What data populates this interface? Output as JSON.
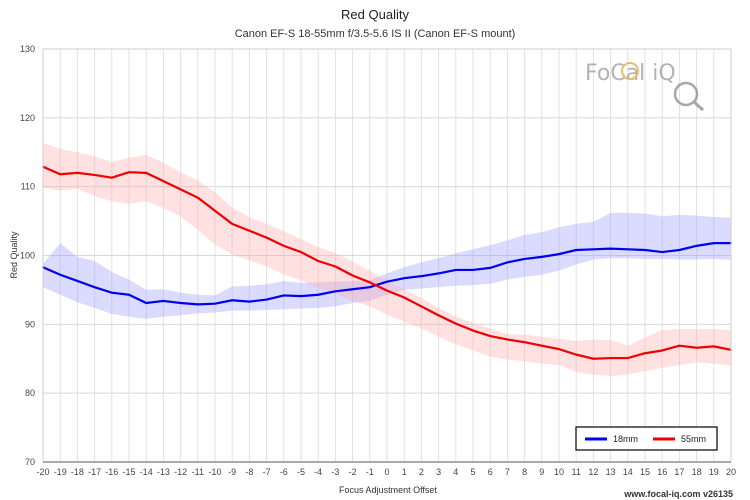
{
  "chart_data": {
    "type": "line",
    "title": "Red Quality",
    "subtitle": "Canon EF-S 18-55mm f/3.5-5.6 IS II (Canon EF-S mount)",
    "xlabel": "Focus Adjustment Offset",
    "ylabel": "Red Quality",
    "x": [
      -20,
      -19,
      -18,
      -17,
      -16,
      -15,
      -14,
      -13,
      -12,
      -11,
      -10,
      -9,
      -8,
      -7,
      -6,
      -5,
      -4,
      -3,
      -2,
      -1,
      0,
      1,
      2,
      3,
      4,
      5,
      6,
      7,
      8,
      9,
      10,
      11,
      12,
      13,
      14,
      15,
      16,
      17,
      18,
      19,
      20
    ],
    "x_tick_labels": [
      "-20",
      "-19",
      "-18",
      "-17",
      "-16",
      "-15",
      "-14",
      "-13",
      "-12",
      "-11",
      "-10",
      "-9",
      "-8",
      "-7",
      "-6",
      "-5",
      "-4",
      "-3",
      "-2",
      "-1",
      "0",
      "1",
      "2",
      "3",
      "4",
      "5",
      "6",
      "7",
      "8",
      "9",
      "10",
      "11",
      "12",
      "13",
      "14",
      "15",
      "16",
      "17",
      "18",
      "19",
      "20"
    ],
    "xlim": [
      -20,
      20
    ],
    "ylim": [
      70,
      130
    ],
    "y_ticks": [
      70,
      80,
      90,
      100,
      110,
      120,
      130
    ],
    "grid": true,
    "legend_position": "bottom-right",
    "series": [
      {
        "name": "18mm",
        "color": "#0000ee",
        "band_color": "#9999ff",
        "values": [
          98.3,
          97.2,
          96.3,
          95.4,
          94.6,
          94.3,
          93.1,
          93.4,
          93.1,
          92.9,
          93.0,
          93.5,
          93.3,
          93.6,
          94.2,
          94.1,
          94.3,
          94.8,
          95.1,
          95.4,
          96.2,
          96.7,
          97.0,
          97.4,
          97.9,
          97.9,
          98.2,
          99.0,
          99.5,
          99.8,
          100.2,
          100.8,
          100.9,
          101.0,
          100.9,
          100.8,
          100.5,
          100.8,
          101.4,
          101.8,
          101.8
        ],
        "band_upper": [
          98.8,
          101.8,
          99.8,
          99.2,
          97.6,
          96.5,
          95.0,
          95.1,
          94.6,
          94.3,
          94.2,
          95.5,
          95.6,
          95.8,
          96.3,
          96.0,
          96.1,
          96.2,
          96.3,
          96.4,
          97.4,
          98.3,
          99.0,
          99.6,
          100.3,
          100.9,
          101.5,
          102.2,
          103.0,
          103.4,
          104.1,
          104.6,
          104.9,
          106.2,
          106.2,
          106.1,
          105.7,
          105.9,
          105.8,
          105.6,
          105.5
        ],
        "band_lower": [
          95.4,
          94.3,
          93.2,
          92.4,
          91.5,
          91.1,
          90.8,
          91.1,
          91.3,
          91.6,
          91.7,
          92.0,
          92.0,
          92.1,
          92.2,
          92.3,
          92.4,
          92.6,
          93.1,
          93.4,
          94.3,
          95.0,
          95.2,
          95.4,
          95.6,
          95.7,
          95.9,
          96.5,
          96.9,
          97.2,
          97.8,
          98.7,
          99.4,
          99.6,
          99.6,
          99.5,
          99.5,
          99.4,
          99.4,
          99.5,
          99.4
        ]
      },
      {
        "name": "55mm",
        "color": "#ee0000",
        "band_color": "#ffaaaa",
        "values": [
          112.9,
          111.8,
          112.0,
          111.7,
          111.3,
          112.1,
          112.0,
          110.8,
          109.6,
          108.4,
          106.5,
          104.6,
          103.6,
          102.6,
          101.4,
          100.5,
          99.2,
          98.4,
          97.1,
          96.1,
          94.9,
          93.9,
          92.6,
          91.3,
          90.1,
          89.1,
          88.3,
          87.8,
          87.4,
          86.9,
          86.4,
          85.6,
          85.0,
          85.1,
          85.1,
          85.8,
          86.2,
          86.9,
          86.6,
          86.8,
          86.3
        ],
        "band_upper": [
          116.3,
          115.5,
          115.0,
          114.4,
          113.6,
          114.2,
          114.6,
          113.5,
          112.1,
          110.9,
          109.2,
          107.0,
          105.6,
          104.6,
          103.5,
          102.4,
          101.2,
          100.4,
          99.1,
          97.8,
          96.3,
          95.1,
          93.8,
          92.4,
          91.1,
          90.2,
          89.4,
          88.6,
          88.5,
          88.2,
          87.9,
          87.6,
          87.8,
          87.7,
          86.9,
          88.1,
          89.2,
          89.3,
          89.3,
          89.3,
          89.2
        ],
        "band_lower": [
          109.9,
          109.4,
          109.7,
          108.6,
          107.9,
          107.5,
          107.9,
          106.9,
          105.7,
          103.7,
          101.6,
          100.1,
          99.3,
          98.4,
          97.2,
          96.4,
          95.3,
          94.4,
          93.4,
          92.6,
          91.4,
          90.4,
          89.4,
          88.2,
          87.1,
          86.2,
          85.3,
          84.9,
          84.6,
          84.3,
          84.1,
          83.1,
          82.7,
          82.5,
          82.7,
          83.2,
          83.7,
          84.1,
          84.5,
          84.3,
          84.0
        ]
      }
    ]
  },
  "logo": {
    "text": "FoCal iQ"
  },
  "footer": {
    "text": "www.focal-iq.com  v26135"
  }
}
